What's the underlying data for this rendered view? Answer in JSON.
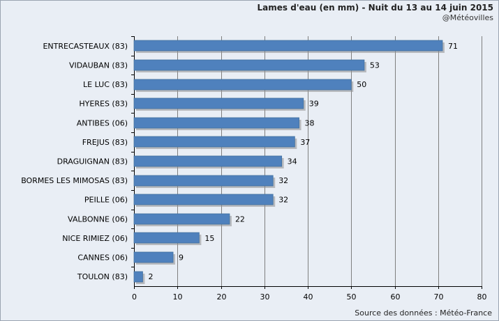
{
  "header": {
    "title": "Lames d'eau (en mm) - Nuit du 13 au 14 juin 2015",
    "credit": "@Météovilles"
  },
  "footer": {
    "source": "Source des données : Météo-France"
  },
  "colors": {
    "background": "#e9eef5",
    "bar_fill": "#4f81bd",
    "bar_shadow": "#8f8f8f",
    "grid": "#7f7f7f",
    "axis": "#000000"
  },
  "chart_data": {
    "type": "bar",
    "orientation": "horizontal",
    "categories": [
      "ENTRECASTEAUX (83)",
      "VIDAUBAN (83)",
      "LE LUC (83)",
      "HYERES (83)",
      "ANTIBES (06)",
      "FREJUS (83)",
      "DRAGUIGNAN (83)",
      "BORMES LES MIMOSAS (83)",
      "PEILLE (06)",
      "VALBONNE (06)",
      "NICE RIMIEZ (06)",
      "CANNES (06)",
      "TOULON (83)"
    ],
    "values": [
      71,
      53,
      50,
      39,
      38,
      37,
      34,
      32,
      32,
      22,
      15,
      9,
      2
    ],
    "data_labels": [
      "71",
      "53",
      "50",
      "39",
      "38",
      "37",
      "34",
      "32",
      "32",
      "22",
      "15",
      "9",
      "2"
    ],
    "x_ticks": [
      "0",
      "10",
      "20",
      "30",
      "40",
      "50",
      "60",
      "70",
      "80"
    ],
    "xlim": [
      0,
      80
    ],
    "grid": true,
    "legend": "none"
  }
}
